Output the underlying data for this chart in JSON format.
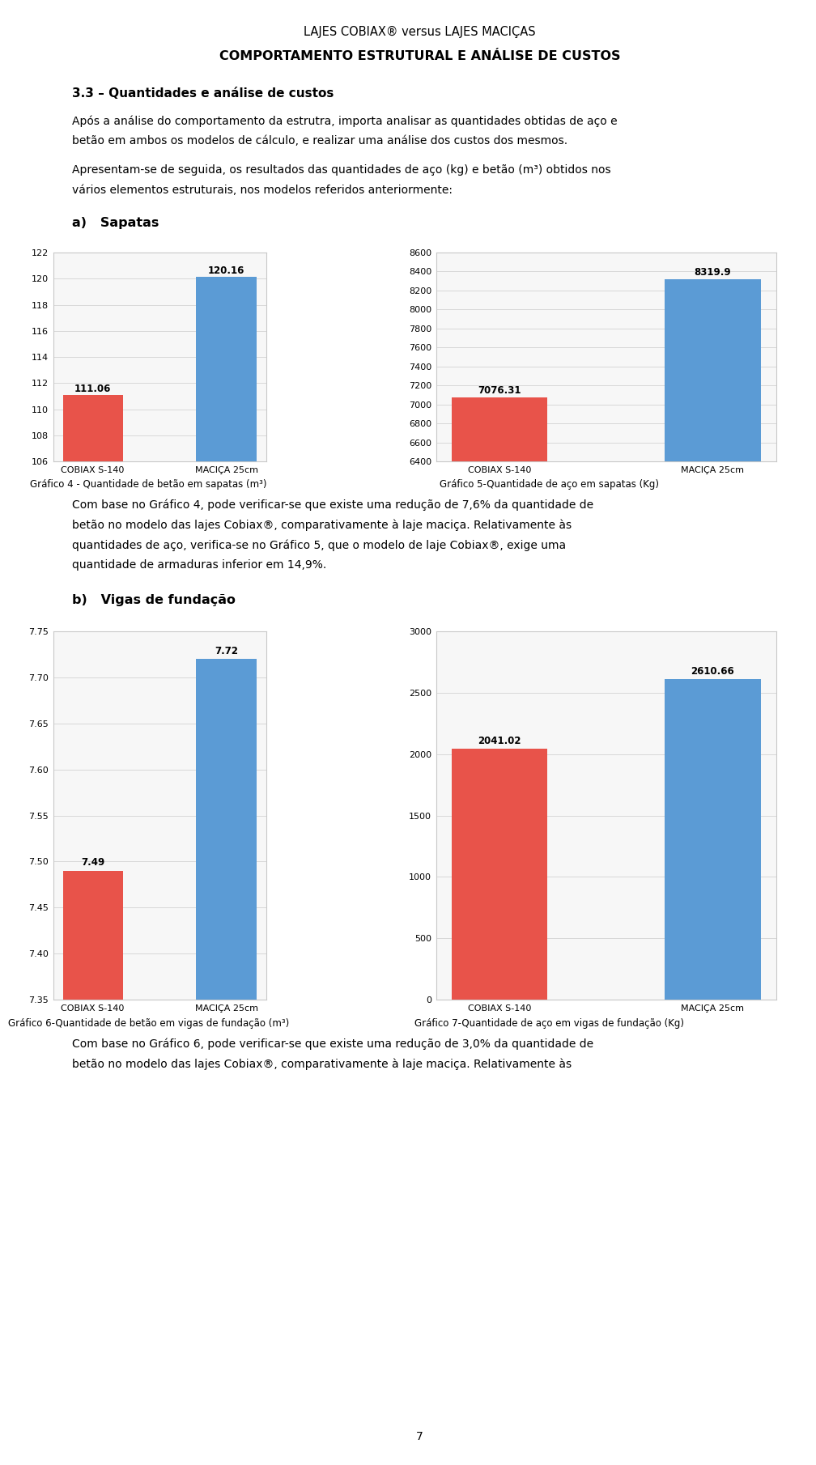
{
  "page_title1": "LAJES COBIAX® versus LAJES MACIÇAS",
  "page_title2": "COMPORTAMENTO ESTRUTURAL E ANÁLISE DE CUSTOS",
  "section_title": "3.3 – Quantidades e análise de custos",
  "para1_line1": "Após a análise do comportamento da estrutra, importa analisar as quantidades obtidas de aço e",
  "para1_line2": "betão em ambos os modelos de cálculo, e realizar uma análise dos custos dos mesmos.",
  "para2_line1": "Apresentam-se de seguida, os resultados das quantidades de aço (kg) e betão (m³) obtidos nos",
  "para2_line2": "vários elementos estruturais, nos modelos referidos anteriormente:",
  "section_a_title": "a)   Sapatas",
  "chart1_values": [
    111.06,
    120.16
  ],
  "chart1_ylim": [
    106,
    122
  ],
  "chart1_yticks": [
    106,
    108,
    110,
    112,
    114,
    116,
    118,
    120,
    122
  ],
  "chart1_categories": [
    "COBIAX S-140",
    "MACIÇA 25cm"
  ],
  "chart1_caption": "Gráfico 4 - Quantidade de betão em sapatas (m³)",
  "chart2_values": [
    7076.31,
    8319.9
  ],
  "chart2_ylim": [
    6400,
    8600
  ],
  "chart2_yticks": [
    6400,
    6600,
    6800,
    7000,
    7200,
    7400,
    7600,
    7800,
    8000,
    8200,
    8400,
    8600
  ],
  "chart2_categories": [
    "COBIAX S-140",
    "MACIÇA 25cm"
  ],
  "chart2_caption": "Gráfico 5-Quantidade de aço em sapatas (Kg)",
  "para3_line1": "Com base no Gráfico 4, pode verificar-se que existe uma redução de 7,6% da quantidade de",
  "para3_line2": "betão no modelo das lajes Cobiax®, comparativamente à laje maciça. Relativamente às",
  "para3_line3": "quantidades de aço, verifica-se no Gráfico 5, que o modelo de laje Cobiax®, exige uma",
  "para3_line4": "quantidade de armaduras inferior em 14,9%.",
  "section_b_title": "b)   Vigas de fundação",
  "chart3_values": [
    7.49,
    7.72
  ],
  "chart3_ylim": [
    7.35,
    7.75
  ],
  "chart3_yticks": [
    7.35,
    7.4,
    7.45,
    7.5,
    7.55,
    7.6,
    7.65,
    7.7,
    7.75
  ],
  "chart3_categories": [
    "COBIAX S-140",
    "MACIÇA 25cm"
  ],
  "chart3_caption": "Gráfico 6-Quantidade de betão em vigas de fundação (m³)",
  "chart4_values": [
    2041.02,
    2610.66
  ],
  "chart4_ylim": [
    0,
    3000
  ],
  "chart4_yticks": [
    0,
    500,
    1000,
    1500,
    2000,
    2500,
    3000
  ],
  "chart4_categories": [
    "COBIAX S-140",
    "MACIÇA 25cm"
  ],
  "chart4_caption": "Gráfico 7-Quantidade de aço em vigas de fundação (Kg)",
  "para4_line1": "Com base no Gráfico 6, pode verificar-se que existe uma redução de 3,0% da quantidade de",
  "para4_line2": "betão no modelo das lajes Cobiax®, comparativamente à laje maciça. Relativamente às",
  "bar_color_red": "#E8534A",
  "bar_color_blue": "#5B9BD5",
  "chart_bg": "#f7f7f7",
  "grid_color": "#d8d8d8",
  "page_number": "7"
}
